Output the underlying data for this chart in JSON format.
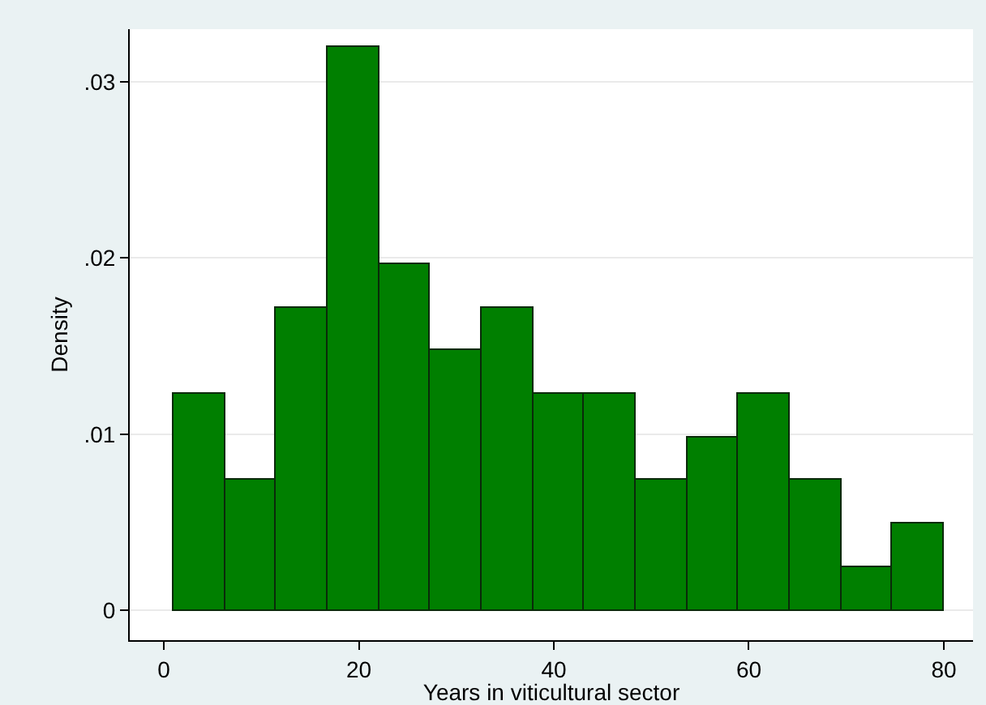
{
  "chart_data": {
    "type": "histogram",
    "xlabel": "Years in viticultural sector",
    "ylabel": "Density",
    "bins": [
      1,
      6.267,
      11.533,
      16.8,
      22.067,
      27.333,
      32.6,
      37.867,
      43.133,
      48.4,
      53.667,
      58.933,
      64.2,
      69.467,
      74.733,
      80
    ],
    "values": [
      0.0123,
      0.0074,
      0.0172,
      0.032,
      0.0197,
      0.0148,
      0.0172,
      0.0123,
      0.0123,
      0.0074,
      0.0098,
      0.0123,
      0.0074,
      0.0024,
      0.0049
    ],
    "color": "#007f00",
    "xlim": [
      -3.5,
      83
    ],
    "xticks": [
      0,
      20,
      40,
      60,
      80
    ],
    "ylim": [
      -0.0017,
      0.033
    ],
    "yticks": [
      {
        "value": 0,
        "label": "0"
      },
      {
        "value": 0.01,
        "label": ".01"
      },
      {
        "value": 0.02,
        "label": ".02"
      },
      {
        "value": 0.03,
        "label": ".03"
      }
    ],
    "grid": "y"
  }
}
